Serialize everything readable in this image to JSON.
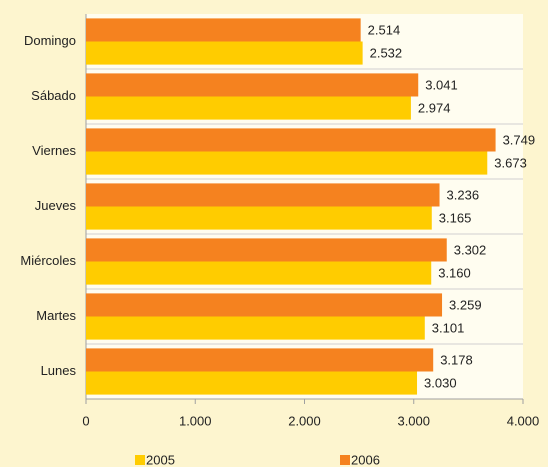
{
  "chart_data": {
    "type": "hbar",
    "categories": [
      "Domingo",
      "Sábado",
      "Viernes",
      "Jueves",
      "Miércoles",
      "Martes",
      "Lunes"
    ],
    "series": [
      {
        "name": "2005",
        "color": "#ffcc00",
        "values": [
          2532,
          2974,
          3673,
          3165,
          3160,
          3101,
          3030
        ],
        "value_labels": [
          "2.532",
          "2.974",
          "3.673",
          "3.165",
          "3.160",
          "3.101",
          "3.030"
        ]
      },
      {
        "name": "2006",
        "color": "#f5821f",
        "values": [
          2514,
          3041,
          3749,
          3236,
          3302,
          3259,
          3178
        ],
        "value_labels": [
          "2.514",
          "3.041",
          "3.749",
          "3.236",
          "3.302",
          "3.259",
          "3.178"
        ]
      }
    ],
    "xlim": [
      0,
      4000
    ],
    "xticks": [
      0,
      {
        "value": 1000,
        "label": "1.000"
      },
      {
        "value": 2000,
        "label": "2.000"
      },
      {
        "value": 3000,
        "label": "3.000"
      },
      {
        "value": 4000,
        "label": "4.000"
      }
    ],
    "legend": "bottom"
  }
}
